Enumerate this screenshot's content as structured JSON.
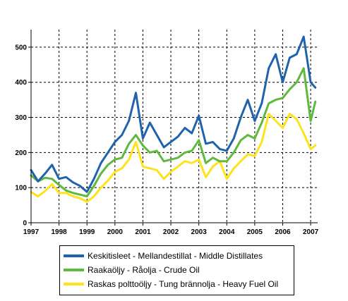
{
  "chart_data": {
    "type": "line",
    "title": "",
    "xlabel": "",
    "ylabel": "",
    "xlim": [
      1997,
      2007.25
    ],
    "ylim": [
      0,
      550
    ],
    "grid": true,
    "legend_position": "bottom",
    "x_ticks": [
      "1997",
      "1998",
      "1999",
      "2000",
      "2001",
      "2002",
      "2003",
      "2004",
      "2005",
      "2006",
      "2007"
    ],
    "y_ticks": [
      "0",
      "100",
      "200",
      "300",
      "400",
      "500"
    ],
    "x": [
      1997.0,
      1997.25,
      1997.5,
      1997.75,
      1998.0,
      1998.25,
      1998.5,
      1998.75,
      1999.0,
      1999.25,
      1999.5,
      1999.75,
      2000.0,
      2000.25,
      2000.5,
      2000.75,
      2001.0,
      2001.25,
      2001.5,
      2001.75,
      2002.0,
      2002.25,
      2002.5,
      2002.75,
      2003.0,
      2003.25,
      2003.5,
      2003.75,
      2004.0,
      2004.25,
      2004.5,
      2004.75,
      2005.0,
      2005.25,
      2005.5,
      2005.75,
      2006.0,
      2006.25,
      2006.5,
      2006.75,
      2007.0,
      2007.17
    ],
    "series": [
      {
        "name": "Keskitisleet - Mellandestillat - Middle Distillates",
        "color": "#1f63ac",
        "values": [
          150,
          118,
          140,
          165,
          125,
          130,
          115,
          105,
          88,
          125,
          170,
          200,
          230,
          250,
          290,
          370,
          240,
          285,
          250,
          215,
          230,
          245,
          270,
          255,
          305,
          225,
          230,
          210,
          205,
          240,
          300,
          350,
          290,
          340,
          440,
          480,
          400,
          470,
          480,
          530,
          400,
          385
        ]
      },
      {
        "name": "Raakaöljy - Råolja - Crude Oil",
        "color": "#5fb93c",
        "values": [
          135,
          118,
          128,
          125,
          108,
          92,
          85,
          80,
          75,
          105,
          140,
          165,
          180,
          185,
          225,
          250,
          220,
          200,
          205,
          175,
          180,
          185,
          200,
          205,
          235,
          170,
          185,
          175,
          175,
          200,
          235,
          250,
          240,
          285,
          340,
          350,
          355,
          380,
          400,
          440,
          290,
          345
        ]
      },
      {
        "name": "Raskas polttoöljy - Tung brännolja - Heavy Fuel Oil",
        "color": "#ffe31a",
        "values": [
          88,
          75,
          90,
          110,
          85,
          85,
          75,
          70,
          60,
          75,
          100,
          120,
          145,
          155,
          180,
          230,
          160,
          155,
          150,
          125,
          145,
          160,
          175,
          170,
          180,
          130,
          160,
          175,
          125,
          155,
          175,
          195,
          190,
          230,
          310,
          290,
          270,
          310,
          295,
          255,
          210,
          220
        ]
      }
    ]
  }
}
